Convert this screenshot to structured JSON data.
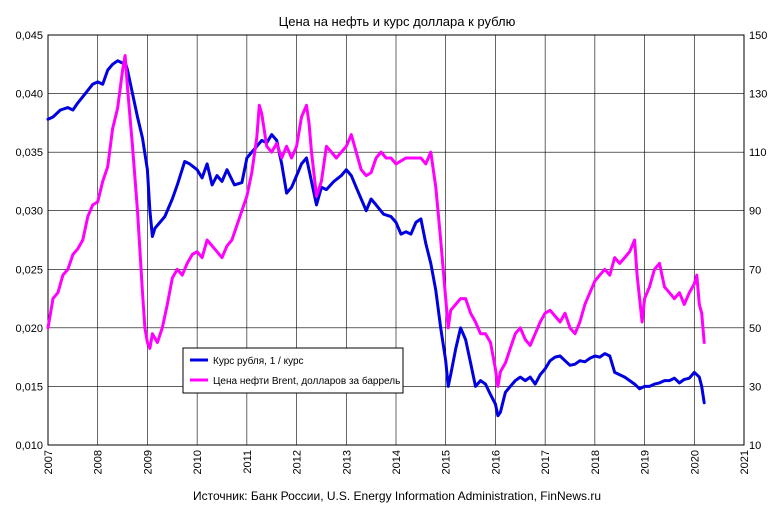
{
  "chart_data": {
    "type": "line",
    "title": "Цена на  нефть и курс доллара  к рублю",
    "source": "Источник: Банк России, U.S. Energy Information Administration, FinNews.ru",
    "x_ticks": [
      "2007",
      "2008",
      "2009",
      "2010",
      "2011",
      "2012",
      "2013",
      "2014",
      "2015",
      "2016",
      "2017",
      "2018",
      "2019",
      "2020",
      "2021"
    ],
    "xlim": [
      2007,
      2021
    ],
    "y_left": {
      "ticks": [
        "0,010",
        "0,015",
        "0,020",
        "0,025",
        "0,030",
        "0,035",
        "0,040",
        "0,045"
      ],
      "lim": [
        0.01,
        0.045
      ]
    },
    "y_right": {
      "ticks": [
        "10",
        "30",
        "50",
        "70",
        "90",
        "110",
        "130",
        "150"
      ],
      "lim": [
        10,
        150
      ]
    },
    "grid": true,
    "legend_position": "center-left",
    "series": [
      {
        "name": "Курс рубля, 1 / курс",
        "axis": "left",
        "color": "#0000e0",
        "x": [
          2007.0,
          2007.1,
          2007.25,
          2007.4,
          2007.5,
          2007.6,
          2007.75,
          2007.9,
          2008.0,
          2008.1,
          2008.2,
          2008.3,
          2008.4,
          2008.5,
          2008.55,
          2008.6,
          2008.7,
          2008.8,
          2008.9,
          2009.0,
          2009.05,
          2009.1,
          2009.15,
          2009.25,
          2009.35,
          2009.5,
          2009.6,
          2009.75,
          2009.85,
          2010.0,
          2010.1,
          2010.2,
          2010.3,
          2010.4,
          2010.5,
          2010.6,
          2010.75,
          2010.9,
          2011.0,
          2011.1,
          2011.2,
          2011.3,
          2011.4,
          2011.5,
          2011.6,
          2011.7,
          2011.8,
          2011.9,
          2012.0,
          2012.1,
          2012.2,
          2012.3,
          2012.4,
          2012.5,
          2012.6,
          2012.75,
          2012.9,
          2013.0,
          2013.1,
          2013.2,
          2013.3,
          2013.4,
          2013.5,
          2013.6,
          2013.75,
          2013.9,
          2014.0,
          2014.1,
          2014.2,
          2014.3,
          2014.4,
          2014.5,
          2014.6,
          2014.7,
          2014.8,
          2014.9,
          2015.0,
          2015.05,
          2015.1,
          2015.2,
          2015.3,
          2015.4,
          2015.5,
          2015.6,
          2015.7,
          2015.8,
          2015.9,
          2016.0,
          2016.05,
          2016.1,
          2016.2,
          2016.3,
          2016.4,
          2016.5,
          2016.6,
          2016.7,
          2016.8,
          2016.9,
          2017.0,
          2017.1,
          2017.2,
          2017.3,
          2017.4,
          2017.5,
          2017.6,
          2017.7,
          2017.8,
          2017.9,
          2018.0,
          2018.1,
          2018.2,
          2018.3,
          2018.4,
          2018.5,
          2018.6,
          2018.7,
          2018.8,
          2018.9,
          2019.0,
          2019.1,
          2019.2,
          2019.3,
          2019.4,
          2019.5,
          2019.6,
          2019.7,
          2019.8,
          2019.9,
          2020.0,
          2020.05,
          2020.1,
          2020.15,
          2020.2
        ],
        "y": [
          0.0378,
          0.038,
          0.0386,
          0.0388,
          0.0386,
          0.0392,
          0.04,
          0.0408,
          0.041,
          0.0408,
          0.042,
          0.0425,
          0.0428,
          0.0426,
          0.0427,
          0.042,
          0.04,
          0.038,
          0.0362,
          0.0335,
          0.03,
          0.0278,
          0.0285,
          0.029,
          0.0295,
          0.031,
          0.0322,
          0.0342,
          0.034,
          0.0335,
          0.0328,
          0.034,
          0.0322,
          0.033,
          0.0325,
          0.0335,
          0.0322,
          0.0324,
          0.0345,
          0.035,
          0.0355,
          0.036,
          0.0358,
          0.0365,
          0.036,
          0.034,
          0.0315,
          0.032,
          0.033,
          0.034,
          0.0345,
          0.0325,
          0.0305,
          0.032,
          0.0318,
          0.0325,
          0.033,
          0.0335,
          0.033,
          0.032,
          0.031,
          0.03,
          0.031,
          0.0305,
          0.0297,
          0.0295,
          0.029,
          0.028,
          0.0282,
          0.028,
          0.029,
          0.0293,
          0.0272,
          0.0255,
          0.0232,
          0.02,
          0.0172,
          0.015,
          0.016,
          0.0182,
          0.02,
          0.019,
          0.017,
          0.015,
          0.0155,
          0.0152,
          0.0143,
          0.0135,
          0.0125,
          0.0128,
          0.0145,
          0.015,
          0.0155,
          0.0158,
          0.0155,
          0.0158,
          0.0152,
          0.016,
          0.0165,
          0.0172,
          0.0175,
          0.0176,
          0.0172,
          0.0168,
          0.0169,
          0.0172,
          0.0171,
          0.0174,
          0.0176,
          0.0175,
          0.0178,
          0.0176,
          0.0162,
          0.016,
          0.0158,
          0.0155,
          0.0152,
          0.0148,
          0.015,
          0.015,
          0.0152,
          0.0153,
          0.0155,
          0.0155,
          0.0157,
          0.0153,
          0.0156,
          0.0157,
          0.0162,
          0.016,
          0.0158,
          0.015,
          0.0136
        ]
      },
      {
        "name": "Цена нефти Brent, долларов за баррель",
        "axis": "right",
        "color": "#ff00ff",
        "x": [
          2007.0,
          2007.05,
          2007.1,
          2007.2,
          2007.3,
          2007.4,
          2007.5,
          2007.6,
          2007.7,
          2007.8,
          2007.9,
          2008.0,
          2008.1,
          2008.2,
          2008.3,
          2008.4,
          2008.5,
          2008.55,
          2008.6,
          2008.7,
          2008.8,
          2008.9,
          2008.95,
          2009.0,
          2009.05,
          2009.1,
          2009.2,
          2009.3,
          2009.4,
          2009.5,
          2009.6,
          2009.7,
          2009.8,
          2009.9,
          2010.0,
          2010.1,
          2010.2,
          2010.3,
          2010.4,
          2010.5,
          2010.6,
          2010.7,
          2010.8,
          2010.9,
          2011.0,
          2011.1,
          2011.2,
          2011.25,
          2011.3,
          2011.4,
          2011.5,
          2011.6,
          2011.7,
          2011.8,
          2011.9,
          2012.0,
          2012.1,
          2012.2,
          2012.25,
          2012.3,
          2012.4,
          2012.5,
          2012.6,
          2012.7,
          2012.8,
          2012.9,
          2013.0,
          2013.1,
          2013.2,
          2013.3,
          2013.4,
          2013.5,
          2013.6,
          2013.7,
          2013.8,
          2013.9,
          2014.0,
          2014.2,
          2014.4,
          2014.5,
          2014.6,
          2014.7,
          2014.8,
          2014.9,
          2015.0,
          2015.05,
          2015.1,
          2015.2,
          2015.3,
          2015.4,
          2015.5,
          2015.6,
          2015.7,
          2015.8,
          2015.9,
          2016.0,
          2016.05,
          2016.1,
          2016.2,
          2016.3,
          2016.4,
          2016.5,
          2016.6,
          2016.7,
          2016.8,
          2016.9,
          2017.0,
          2017.1,
          2017.2,
          2017.3,
          2017.4,
          2017.5,
          2017.6,
          2017.7,
          2017.8,
          2017.9,
          2018.0,
          2018.1,
          2018.2,
          2018.3,
          2018.4,
          2018.5,
          2018.6,
          2018.7,
          2018.8,
          2018.85,
          2018.9,
          2018.95,
          2019.0,
          2019.1,
          2019.2,
          2019.3,
          2019.4,
          2019.5,
          2019.6,
          2019.7,
          2019.8,
          2019.9,
          2020.0,
          2020.05,
          2020.1,
          2020.15,
          2020.2
        ],
        "y": [
          50,
          55,
          60,
          62,
          68,
          70,
          75,
          77,
          80,
          88,
          92,
          93,
          100,
          105,
          118,
          125,
          138,
          143,
          132,
          112,
          90,
          62,
          50,
          45,
          43,
          48,
          45,
          50,
          58,
          67,
          70,
          68,
          72,
          75,
          76,
          74,
          80,
          78,
          76,
          74,
          78,
          80,
          85,
          90,
          95,
          103,
          115,
          126,
          123,
          112,
          110,
          113,
          108,
          112,
          108,
          112,
          122,
          126,
          120,
          110,
          95,
          100,
          112,
          110,
          108,
          110,
          112,
          116,
          110,
          104,
          102,
          103,
          108,
          110,
          108,
          108,
          106,
          108,
          108,
          108,
          106,
          110,
          98,
          80,
          60,
          50,
          56,
          58,
          60,
          60,
          55,
          52,
          48,
          48,
          45,
          36,
          30,
          35,
          38,
          43,
          48,
          50,
          46,
          44,
          48,
          52,
          55,
          56,
          54,
          52,
          55,
          50,
          48,
          52,
          58,
          62,
          66,
          68,
          70,
          68,
          74,
          72,
          74,
          76,
          80,
          68,
          60,
          52,
          60,
          64,
          70,
          72,
          64,
          62,
          60,
          62,
          58,
          62,
          65,
          68,
          58,
          55,
          45
        ]
      }
    ]
  }
}
